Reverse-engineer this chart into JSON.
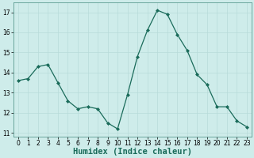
{
  "x": [
    0,
    1,
    2,
    3,
    4,
    5,
    6,
    7,
    8,
    9,
    10,
    11,
    12,
    13,
    14,
    15,
    16,
    17,
    18,
    19,
    20,
    21,
    22,
    23
  ],
  "y": [
    13.6,
    13.7,
    14.3,
    14.4,
    13.5,
    12.6,
    12.2,
    12.3,
    12.2,
    11.5,
    11.2,
    12.9,
    14.8,
    16.1,
    17.1,
    16.9,
    15.9,
    15.1,
    13.9,
    13.4,
    12.3,
    12.3,
    11.6,
    11.3
  ],
  "line_color": "#1a6b5a",
  "marker": "D",
  "marker_size": 2.0,
  "bg_color": "#ceecea",
  "grid_color": "#b8dbd9",
  "xlabel": "Humidex (Indice chaleur)",
  "xlabel_fontsize": 7.5,
  "tick_fontsize": 5.5,
  "ylim": [
    10.8,
    17.5
  ],
  "yticks": [
    11,
    12,
    13,
    14,
    15,
    16,
    17
  ],
  "xlim": [
    -0.5,
    23.5
  ],
  "xticks": [
    0,
    1,
    2,
    3,
    4,
    5,
    6,
    7,
    8,
    9,
    10,
    11,
    12,
    13,
    14,
    15,
    16,
    17,
    18,
    19,
    20,
    21,
    22,
    23
  ]
}
